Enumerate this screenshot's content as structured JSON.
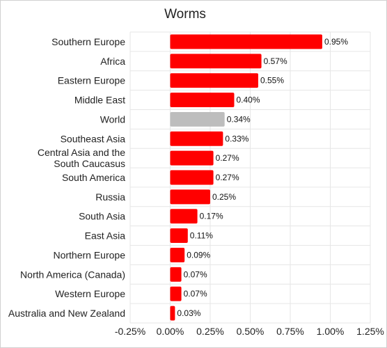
{
  "chart_data": {
    "type": "bar",
    "orientation": "horizontal",
    "title": "Worms",
    "xlabel": "",
    "ylabel": "",
    "categories": [
      "Southern Europe",
      "Africa",
      "Eastern Europe",
      "Middle East",
      "World",
      "Southeast Asia",
      "Central Asia and the South Caucasus",
      "South America",
      "Russia",
      "South Asia",
      "East Asia",
      "Northern Europe",
      "North America (Canada)",
      "Western Europe",
      "Australia and New Zealand"
    ],
    "values": [
      0.95,
      0.57,
      0.55,
      0.4,
      0.34,
      0.33,
      0.27,
      0.27,
      0.25,
      0.17,
      0.11,
      0.09,
      0.07,
      0.07,
      0.03
    ],
    "value_labels": [
      "0.95%",
      "0.57%",
      "0.55%",
      "0.40%",
      "0.34%",
      "0.33%",
      "0.27%",
      "0.27%",
      "0.25%",
      "0.17%",
      "0.11%",
      "0.09%",
      "0.07%",
      "0.07%",
      "0.03%"
    ],
    "bar_colors": [
      "#ff0000",
      "#ff0000",
      "#ff0000",
      "#ff0000",
      "#bdbdbd",
      "#ff0000",
      "#ff0000",
      "#ff0000",
      "#ff0000",
      "#ff0000",
      "#ff0000",
      "#ff0000",
      "#ff0000",
      "#ff0000",
      "#ff0000"
    ],
    "xlim": [
      -0.25,
      1.25
    ],
    "x_ticks": [
      -0.25,
      0,
      0.25,
      0.5,
      0.75,
      1.0,
      1.25
    ],
    "x_tick_labels": [
      "-0.25%",
      "0.00%",
      "0.25%",
      "0.50%",
      "0.75%",
      "1.00%",
      "1.25%"
    ],
    "grid": true,
    "legend": "none"
  }
}
